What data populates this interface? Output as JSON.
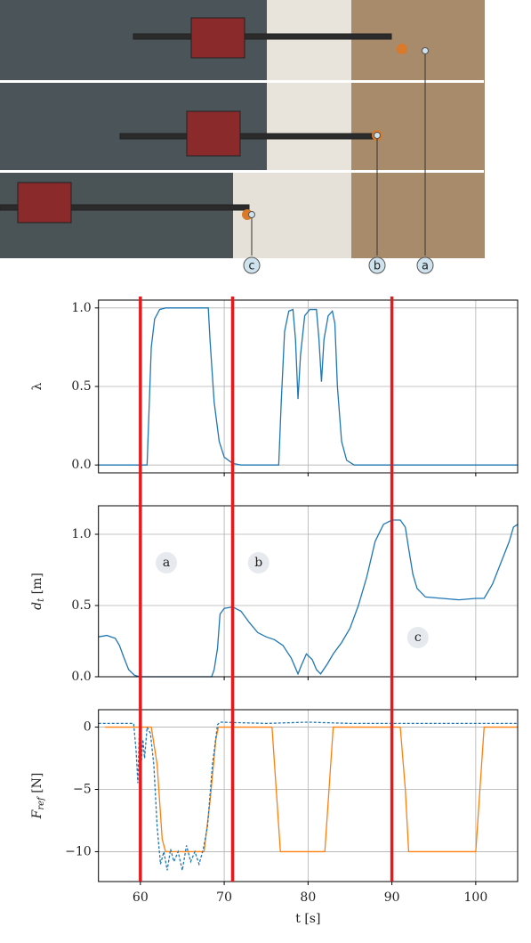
{
  "photo": {
    "labels": [
      "a",
      "b",
      "c"
    ]
  },
  "events": {
    "x": [
      60,
      71,
      90
    ],
    "color": "#e41a1c"
  },
  "chart_data": [
    {
      "type": "line",
      "ylabel": {
        "base": "λ"
      },
      "xlim": [
        55,
        105
      ],
      "ylim": [
        -0.05,
        1.05
      ],
      "xticks": [
        60,
        70,
        80,
        90,
        100
      ],
      "show_xtick_labels": false,
      "yticks": [
        {
          "value": 0,
          "label": "0.0"
        },
        0.5,
        {
          "value": 1,
          "label": "1.0"
        }
      ],
      "grid": true,
      "series": [
        {
          "color": "#1f77b4",
          "dash": false,
          "x": [
            55,
            60.8,
            61.0,
            61.3,
            61.7,
            62.3,
            63,
            68.1,
            68.3,
            68.8,
            69.4,
            70,
            71,
            72,
            76.5,
            76.8,
            77.2,
            77.7,
            78.2,
            78.5,
            78.8,
            79.1,
            79.6,
            80.2,
            81,
            81.3,
            81.6,
            81.9,
            82.4,
            82.9,
            83.2,
            83.5,
            84,
            84.6,
            85.5,
            105
          ],
          "values": [
            0,
            0,
            0.3,
            0.75,
            0.93,
            0.99,
            1.0,
            1.0,
            0.8,
            0.4,
            0.15,
            0.05,
            0.01,
            0,
            0,
            0.4,
            0.85,
            0.98,
            0.99,
            0.8,
            0.42,
            0.7,
            0.95,
            0.99,
            0.99,
            0.8,
            0.53,
            0.8,
            0.95,
            0.98,
            0.9,
            0.5,
            0.15,
            0.03,
            0,
            0
          ]
        }
      ]
    },
    {
      "type": "line",
      "ylabel": {
        "base": "d",
        "sub": "t",
        "unit": " [m]"
      },
      "xlim": [
        55,
        105
      ],
      "ylim": [
        0,
        1.2
      ],
      "xticks": [
        60,
        70,
        80,
        90,
        100
      ],
      "show_xtick_labels": false,
      "yticks": [
        {
          "value": 0,
          "label": "0.0"
        },
        0.5,
        {
          "value": 1,
          "label": "1.0"
        }
      ],
      "grid": true,
      "annotations": [
        {
          "text": "a",
          "x": 63.1,
          "y": 0.8
        },
        {
          "text": "b",
          "x": 74.1,
          "y": 0.8
        },
        {
          "text": "c",
          "x": 93.1,
          "y": 0.275
        }
      ],
      "series": [
        {
          "color": "#1f77b4",
          "dash": false,
          "x": [
            55,
            56,
            57,
            57.5,
            58,
            58.6,
            59.3,
            60,
            68.5,
            68.8,
            69.2,
            69.5,
            70,
            71,
            72,
            73,
            74,
            75,
            76,
            77,
            78,
            78.8,
            79.2,
            79.8,
            80.5,
            81,
            81.5,
            82.3,
            83,
            84,
            85,
            86,
            87,
            88,
            89,
            90,
            91,
            91.6,
            92,
            92.5,
            93,
            94,
            96,
            98,
            100,
            101,
            102,
            103,
            104,
            104.5,
            105
          ],
          "values": [
            0.28,
            0.29,
            0.27,
            0.22,
            0.14,
            0.05,
            0.01,
            0,
            0,
            0.05,
            0.2,
            0.44,
            0.48,
            0.49,
            0.46,
            0.38,
            0.31,
            0.28,
            0.26,
            0.22,
            0.13,
            0.02,
            0.08,
            0.16,
            0.12,
            0.05,
            0.02,
            0.09,
            0.16,
            0.24,
            0.34,
            0.5,
            0.7,
            0.95,
            1.07,
            1.1,
            1.1,
            1.05,
            0.9,
            0.72,
            0.62,
            0.56,
            0.55,
            0.54,
            0.55,
            0.55,
            0.65,
            0.8,
            0.95,
            1.05,
            1.07
          ]
        }
      ]
    },
    {
      "type": "line",
      "ylabel": {
        "base": "F",
        "sub": "ref",
        "unit": " [N]"
      },
      "xlabel": "t [s]",
      "xlim": [
        55,
        105
      ],
      "ylim": [
        -12.4,
        1.4
      ],
      "xticks": [
        60,
        70,
        80,
        90,
        100
      ],
      "show_xtick_labels": true,
      "yticks": [
        {
          "value": -10,
          "label": "−10"
        },
        {
          "value": -5,
          "label": "−5"
        },
        0
      ],
      "grid": true,
      "series": [
        {
          "color": "#ff7f0e",
          "dash": false,
          "x": [
            55.8,
            61.3,
            62,
            62.6,
            63,
            67.6,
            68.3,
            69,
            69.3,
            75.7,
            76.2,
            76.7,
            82,
            82.5,
            83,
            91,
            91.6,
            92,
            100,
            100.5,
            101,
            105
          ],
          "values": [
            0,
            0,
            -3,
            -9,
            -10,
            -10,
            -6,
            -1,
            0,
            0,
            -5,
            -10,
            -10,
            -5,
            0,
            0,
            -5,
            -10,
            -10,
            -5,
            0,
            0
          ]
        },
        {
          "color": "#1f77b4",
          "dash": true,
          "x": [
            55,
            58,
            59.2,
            59.5,
            59.7,
            59.9,
            60.1,
            60.3,
            60.5,
            60.8,
            61.2,
            61.6,
            62,
            62.4,
            62.8,
            63.2,
            63.6,
            64,
            64.5,
            65,
            65.5,
            66,
            66.5,
            67,
            67.5,
            68,
            68.6,
            69.2,
            69.5,
            75,
            80,
            85,
            90,
            95,
            105
          ],
          "values": [
            0.3,
            0.3,
            0.3,
            -2,
            -4.5,
            0.5,
            -3,
            -1,
            -2.5,
            0,
            -0.5,
            -3,
            -8,
            -11,
            -10,
            -11.5,
            -9.8,
            -10.8,
            -10,
            -11.5,
            -9.5,
            -10.8,
            -10,
            -11,
            -9.8,
            -8,
            -3,
            0.2,
            0.4,
            0.3,
            0.4,
            0.3,
            0.3,
            0.3,
            0.3
          ]
        }
      ]
    }
  ]
}
